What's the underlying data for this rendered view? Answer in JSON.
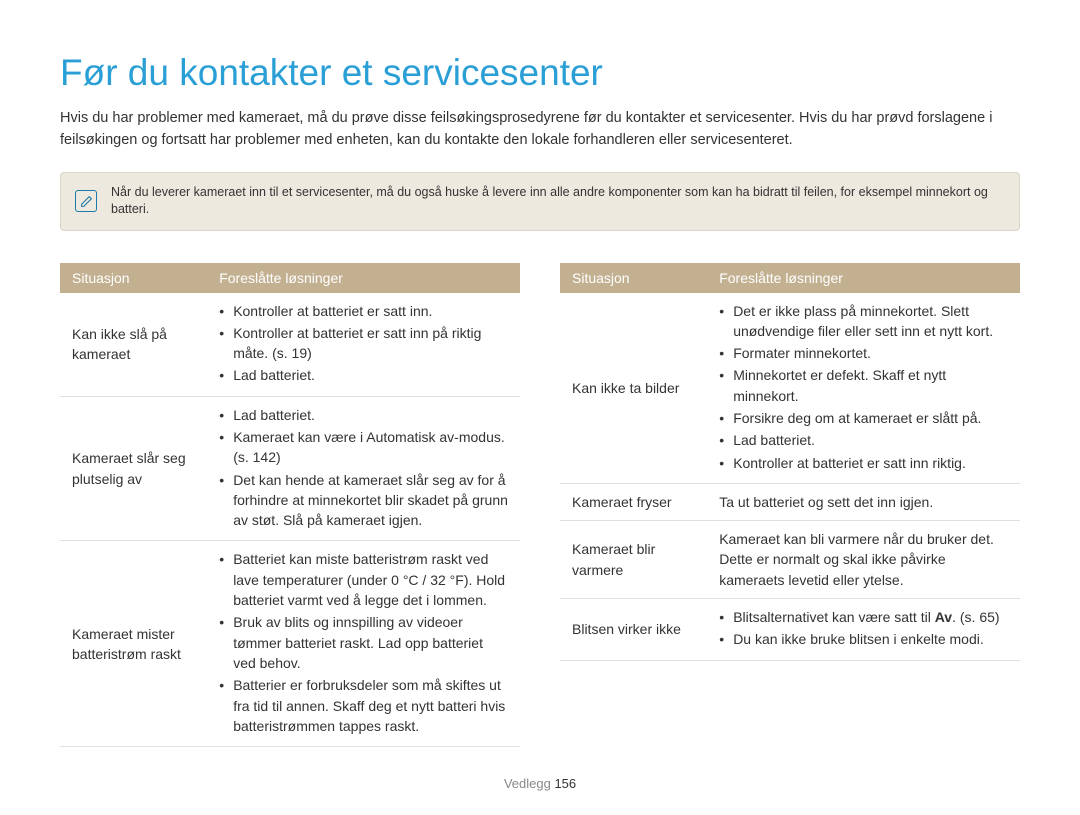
{
  "colors": {
    "title": "#2a9fd6",
    "body_text": "#333333",
    "note_bg": "#eee9df",
    "note_border": "#dcd6c9",
    "note_icon": "#1a7aa8",
    "table_header_bg": "#c3b091",
    "table_header_text": "#ffffff",
    "row_border": "#e0e0e0",
    "footer": "#999999"
  },
  "title": "Før du kontakter et servicesenter",
  "intro": "Hvis du har problemer med kameraet, må du prøve disse feilsøkingsprosedyrene før du kontakter et servicesenter. Hvis du har prøvd forslagene i feilsøkingen og fortsatt har problemer med enheten, kan du kontakte den lokale forhandleren eller servicesenteret.",
  "note": "Når du leverer kameraet inn til et servicesenter, må du også huske å levere inn alle andre komponenter som kan ha bidratt til feilen, for eksempel minnekort og batteri.",
  "headers": {
    "situation": "Situasjon",
    "solutions": "Foreslåtte løsninger"
  },
  "left_rows": [
    {
      "situation": "Kan ikke slå på kameraet",
      "items": [
        "Kontroller at batteriet er satt inn.",
        "Kontroller at batteriet er satt inn på riktig måte. (s. 19)",
        "Lad batteriet."
      ]
    },
    {
      "situation": "Kameraet slår seg plutselig av",
      "items": [
        "Lad batteriet.",
        "Kameraet kan være i Automatisk av-modus. (s. 142)",
        "Det kan hende at kameraet slår seg av for å forhindre at minnekortet blir skadet på grunn av støt. Slå på kameraet igjen."
      ]
    },
    {
      "situation": "Kameraet mister batteristrøm raskt",
      "items": [
        "Batteriet kan miste batteristrøm raskt ved lave temperaturer (under 0 °C / 32 °F). Hold batteriet varmt ved å legge det i lommen.",
        "Bruk av blits og innspilling av videoer tømmer batteriet raskt. Lad opp batteriet ved behov.",
        "Batterier er forbruksdeler som må skiftes ut fra tid til annen. Skaff deg et nytt batteri hvis batteristrømmen tappes raskt."
      ]
    }
  ],
  "right_rows": [
    {
      "situation": "Kan ikke ta bilder",
      "items": [
        "Det er ikke plass på minnekortet. Slett unødvendige filer eller sett inn et nytt kort.",
        "Formater minnekortet.",
        "Minnekortet er defekt. Skaff et nytt minnekort.",
        "Forsikre deg om at kameraet er slått på.",
        "Lad batteriet.",
        "Kontroller at batteriet er satt inn riktig."
      ]
    },
    {
      "situation": "Kameraet fryser",
      "text": "Ta ut batteriet og sett det inn igjen."
    },
    {
      "situation": "Kameraet blir varmere",
      "text": "Kameraet kan bli varmere når du bruker det. Dette er normalt og skal ikke påvirke kameraets levetid eller ytelse."
    },
    {
      "situation": "Blitsen virker ikke",
      "items_html": [
        "Blitsalternativet kan være satt til <b>Av</b>. (s. 65)",
        "Du kan ikke bruke blitsen i enkelte modi."
      ]
    }
  ],
  "footer": {
    "section": "Vedlegg",
    "page": "156"
  }
}
